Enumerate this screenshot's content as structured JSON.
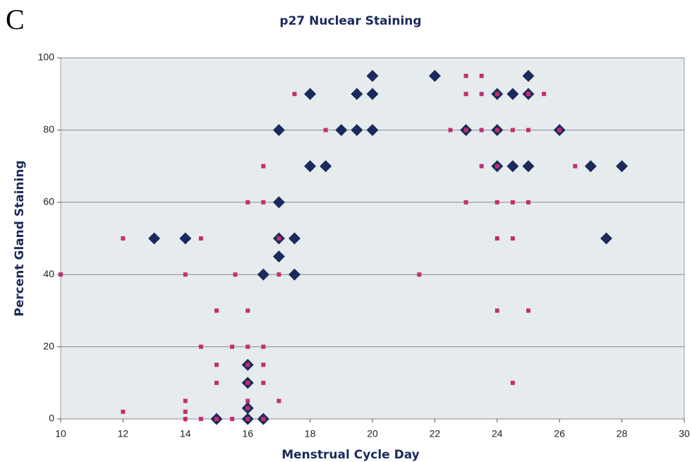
{
  "chart_data": {
    "type": "scatter",
    "panel_label": "C",
    "title": "p27 Nuclear Staining",
    "x_label": "Menstrual Cycle Day",
    "y_label": "Percent Gland Staining",
    "xlim": [
      10,
      30
    ],
    "xticks": [
      10,
      12,
      14,
      16,
      18,
      20,
      22,
      24,
      26,
      28,
      30
    ],
    "ylim": [
      0,
      100
    ],
    "yticks": [
      0,
      20,
      40,
      60,
      80,
      100
    ],
    "grid": true,
    "series": [
      {
        "color": "#1b2a5c",
        "marker": "diamond",
        "x": [
          13,
          14,
          15,
          16,
          16,
          16,
          16,
          16.5,
          16.5,
          17,
          17,
          17,
          17,
          17.5,
          17.5,
          18,
          18,
          18.5,
          19,
          19.5,
          19.5,
          20,
          20,
          20,
          22,
          23,
          24,
          24,
          24,
          24.5,
          24.5,
          25,
          25,
          25,
          26,
          27,
          27.5,
          28
        ],
        "values": [
          50,
          50,
          0,
          0,
          3,
          10,
          15,
          0,
          40,
          80,
          60,
          50,
          45,
          50,
          40,
          90,
          70,
          70,
          80,
          80,
          90,
          80,
          90,
          95,
          95,
          80,
          90,
          80,
          70,
          90,
          70,
          95,
          90,
          70,
          80,
          70,
          50,
          70
        ]
      },
      {
        "color": "#c0306e",
        "marker": "square",
        "x": [
          10,
          12,
          12,
          14,
          14,
          14,
          14,
          14.5,
          14.5,
          14.5,
          15,
          15,
          15,
          15,
          15.5,
          15.5,
          15.6,
          16,
          16,
          16,
          16,
          16,
          16,
          16,
          16,
          16.5,
          16.5,
          16.5,
          16.5,
          16.5,
          16.5,
          17,
          17,
          17,
          17.5,
          18.5,
          21.5,
          22.5,
          23,
          23,
          23,
          23,
          23.5,
          23.5,
          23.5,
          23.5,
          24,
          24,
          24,
          24,
          24,
          24,
          24.5,
          24.5,
          24.5,
          24.5,
          25,
          25,
          25,
          25,
          25.5,
          26,
          26.5
        ],
        "values": [
          40,
          50,
          2,
          5,
          2,
          0,
          40,
          50,
          20,
          0,
          30,
          15,
          10,
          0,
          20,
          0,
          40,
          60,
          30,
          20,
          15,
          10,
          5,
          3,
          0,
          70,
          60,
          20,
          15,
          10,
          0,
          50,
          40,
          5,
          90,
          80,
          40,
          80,
          95,
          90,
          80,
          60,
          95,
          90,
          80,
          70,
          90,
          80,
          70,
          60,
          50,
          30,
          80,
          60,
          50,
          10,
          90,
          80,
          60,
          30,
          90,
          80,
          70
        ]
      }
    ]
  }
}
